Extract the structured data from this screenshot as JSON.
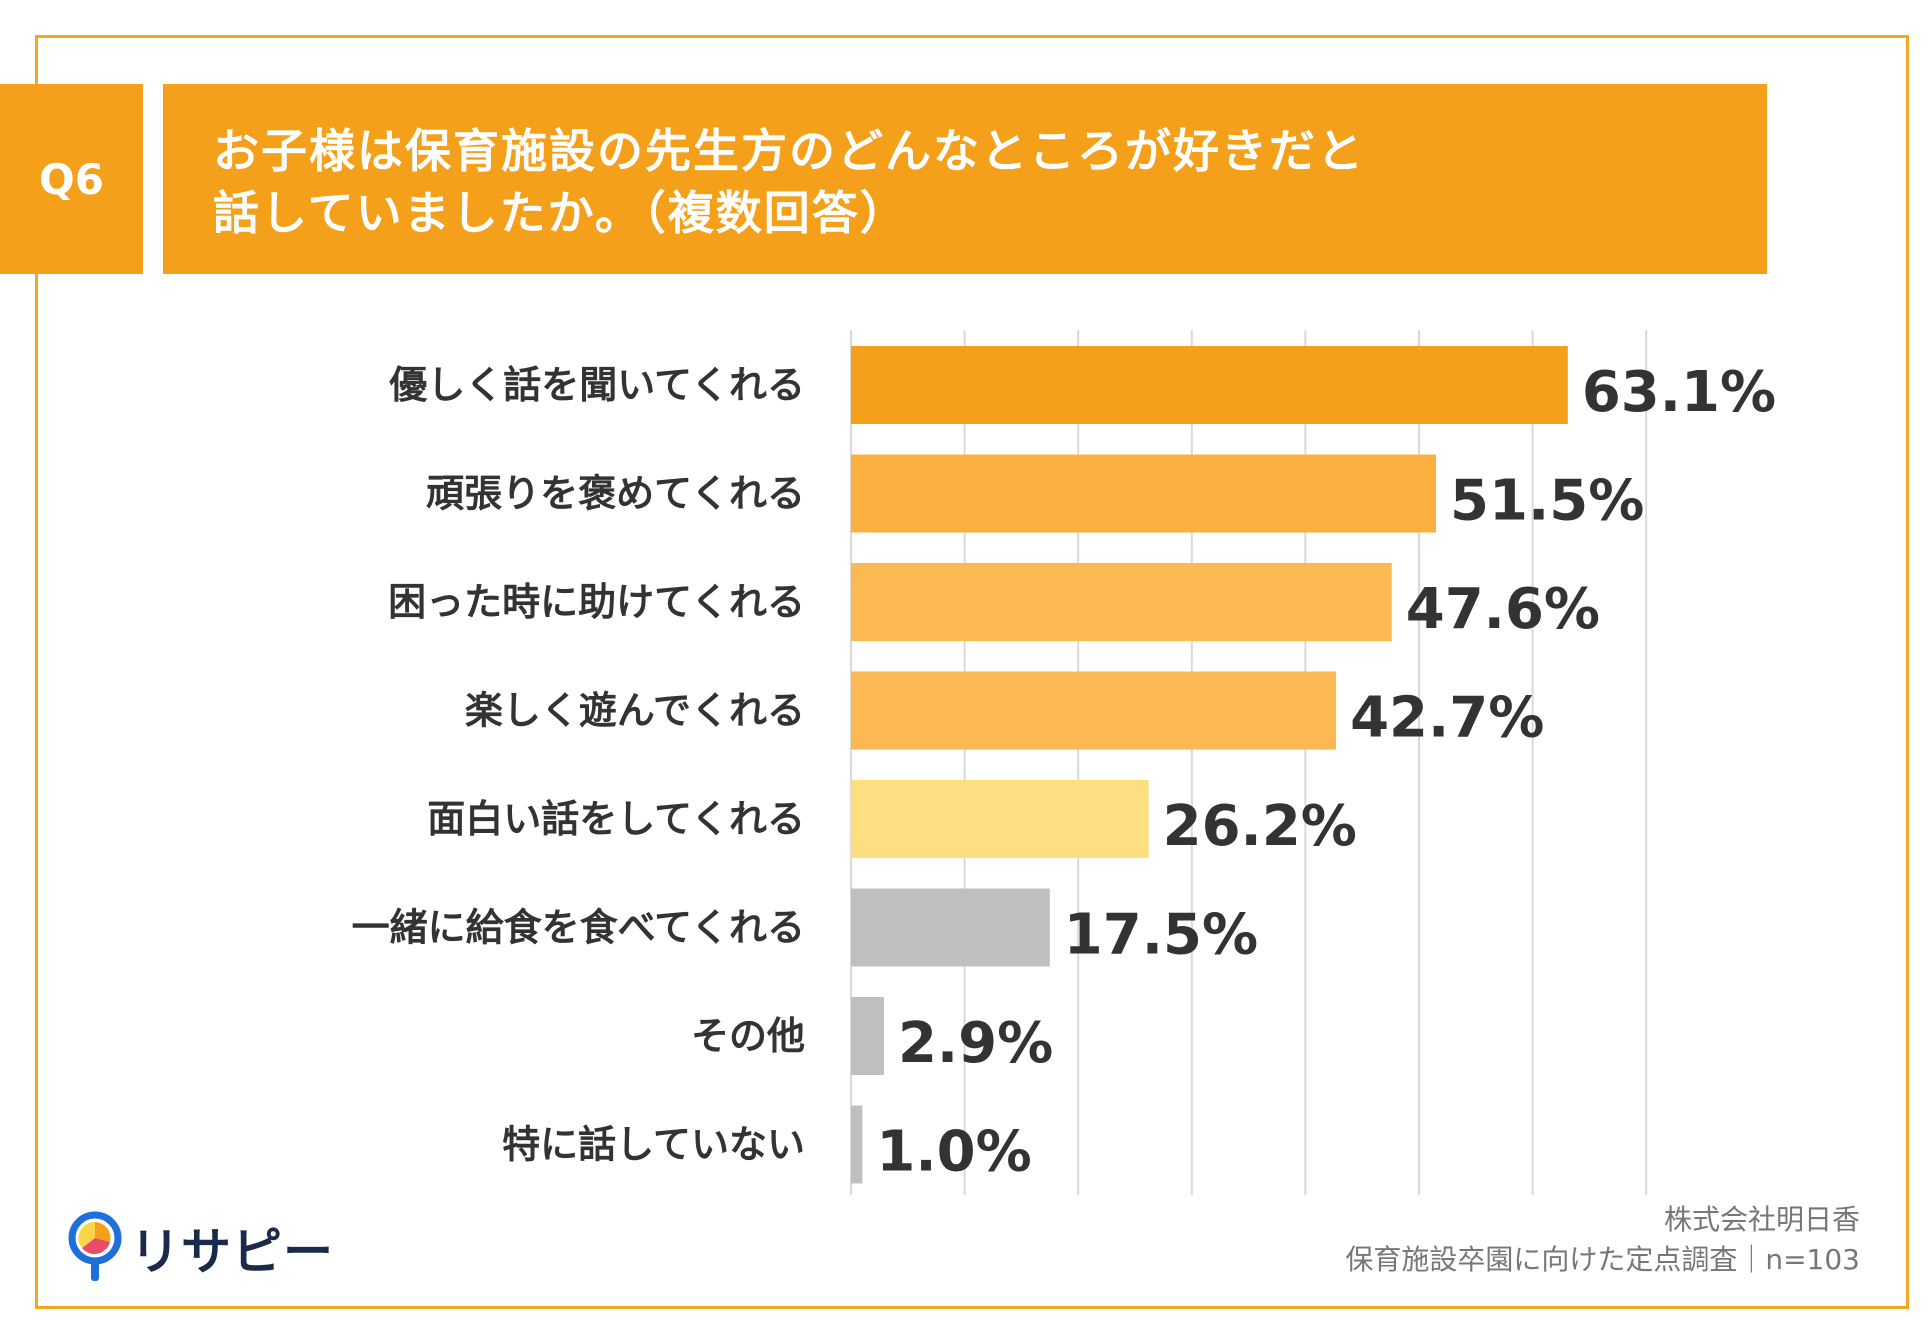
{
  "header": {
    "badge": "Q6",
    "title_line1": "お子様は保育施設の先生方のどんなところが好きだと",
    "title_line2": "話していましたか。（複数回答）"
  },
  "colors": {
    "accent": "#F5A01A",
    "frame": "#F5A623",
    "text": "#333333",
    "grid": "#D9D9D9"
  },
  "chart_data": {
    "type": "bar",
    "orientation": "horizontal",
    "title": "お子様は保育施設の先生方のどんなところが好きだと話していましたか。（複数回答）",
    "categories": [
      "優しく話を聞いてくれる",
      "頑張りを褒めてくれる",
      "困った時に助けてくれる",
      "楽しく遊んでくれる",
      "面白い話をしてくれる",
      "一緒に給食を食べてくれる",
      "その他",
      "特に話していない"
    ],
    "values": [
      63.1,
      51.5,
      47.6,
      42.7,
      26.2,
      17.5,
      2.9,
      1.0
    ],
    "value_labels": [
      "63.1%",
      "51.5%",
      "47.6%",
      "42.7%",
      "26.2%",
      "17.5%",
      "2.9%",
      "1.0%"
    ],
    "bar_colors": [
      "#F5A01A",
      "#FBB040",
      "#FBB853",
      "#FBB853",
      "#FDDF82",
      "#BFBFBF",
      "#BFBFBF",
      "#BFBFBF"
    ],
    "unit": "%",
    "xlim": [
      0,
      70
    ],
    "grid_step": 10,
    "grid": true,
    "xlabel": "",
    "ylabel": ""
  },
  "footer": {
    "logo_text": "リサピー",
    "source_line1": "株式会社明日香",
    "source_line2": "保育施設卒園に向けた定点調査｜n=103"
  }
}
